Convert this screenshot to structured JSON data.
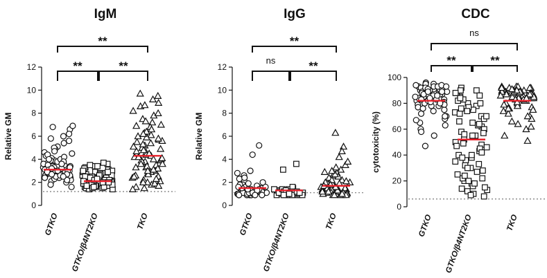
{
  "chart_data": [
    {
      "type": "scatter",
      "title": "IgM",
      "xlabel": "",
      "ylabel": "Relative GM",
      "categories": [
        "GTKO",
        "GTKO/β4NT2KO",
        "TKO"
      ],
      "markers": [
        "circle",
        "square",
        "triangle"
      ],
      "ylim": [
        0,
        12
      ],
      "yticks": [
        0,
        2,
        4,
        6,
        8,
        10,
        12
      ],
      "cutoff": 1.2,
      "medians": [
        3.1,
        2.1,
        4.3
      ],
      "median_color": "#e8202a",
      "comparisons": [
        {
          "from": 0,
          "to": 1,
          "label": "**"
        },
        {
          "from": 1,
          "to": 2,
          "label": "**"
        },
        {
          "from": 0,
          "to": 2,
          "label": "**"
        }
      ],
      "series": [
        {
          "values": [
            3.0,
            2.4,
            4.6,
            3.9,
            6.6,
            2.7,
            3.1,
            5.1,
            2.5,
            3.6,
            4.3,
            2.2,
            3.2,
            2.9,
            3.8,
            5.8,
            2.6,
            3.5,
            4.1,
            2.1,
            3.3,
            6.2,
            2.8,
            3.0,
            4.9,
            3.7,
            2.4,
            3.4,
            5.4,
            2.7,
            3.1,
            4.4,
            2.3,
            3.6,
            6.9,
            2.9,
            3.2,
            4.0,
            2.6,
            3.9,
            5.0,
            2.5,
            3.3,
            2.0,
            4.7,
            3.0,
            2.8,
            3.5,
            6.0,
            2.4,
            3.1,
            4.2,
            2.7,
            3.4,
            5.6,
            2.2,
            3.8,
            2.6,
            3.0,
            4.5,
            1.8,
            3.2,
            2.9,
            6.8,
            3.6,
            2.5,
            4.0,
            3.3,
            1.6,
            2.7
          ]
        },
        {
          "values": [
            2.3,
            1.8,
            2.6,
            2.0,
            3.4,
            1.7,
            2.2,
            2.9,
            1.6,
            2.4,
            3.1,
            1.9,
            2.1,
            2.5,
            1.5,
            2.8,
            2.0,
            3.6,
            1.8,
            2.3,
            2.7,
            1.4,
            2.2,
            3.0,
            1.9,
            2.4,
            2.0,
            3.3,
            1.7,
            2.6,
            2.1,
            1.6,
            2.9,
            2.3,
            1.8,
            3.5,
            2.2,
            2.5,
            1.5,
            2.0,
            2.8,
            1.9,
            2.4,
            3.2,
            1.7,
            2.1,
            2.6,
            1.6,
            2.3,
            3.7,
            1.8,
            2.2,
            2.0,
            2.7,
            1.4,
            2.5,
            1.9,
            2.9,
            2.1,
            3.0,
            1.7,
            2.4,
            1.8,
            2.6,
            2.2,
            1.5,
            3.4,
            2.0,
            2.3,
            1.6
          ]
        },
        {
          "values": [
            4.2,
            2.5,
            6.1,
            3.3,
            8.9,
            1.8,
            5.2,
            3.9,
            9.5,
            2.2,
            4.6,
            7.2,
            3.0,
            5.7,
            2.0,
            4.0,
            6.8,
            3.5,
            1.5,
            8.2,
            4.9,
            2.8,
            5.4,
            3.7,
            7.8,
            1.9,
            4.4,
            6.3,
            3.2,
            9.2,
            2.4,
            5.0,
            3.8,
            7.0,
            4.3,
            2.6,
            6.6,
            1.6,
            5.5,
            3.4,
            8.6,
            4.1,
            2.1,
            5.9,
            3.6,
            7.5,
            4.7,
            2.9,
            6.0,
            3.1,
            9.7,
            1.7,
            4.5,
            5.3,
            2.3,
            6.9,
            3.9,
            4.8,
            8.0,
            2.7,
            5.1,
            3.3,
            7.3,
            4.2,
            2.0,
            6.4,
            3.6,
            5.6,
            1.4,
            4.0,
            8.7,
            3.0,
            5.8,
            2.5,
            6.2
          ]
        }
      ]
    },
    {
      "type": "scatter",
      "title": "IgG",
      "xlabel": "",
      "ylabel": "Relative GM",
      "categories": [
        "GTKO",
        "GTKO/β4NT2KO",
        "TKO"
      ],
      "markers": [
        "circle",
        "square",
        "triangle"
      ],
      "ylim": [
        0,
        12
      ],
      "yticks": [
        0,
        2,
        4,
        6,
        8,
        10,
        12
      ],
      "cutoff": 1.1,
      "medians": [
        1.5,
        1.3,
        1.7
      ],
      "median_color": "#e8202a",
      "comparisons": [
        {
          "from": 0,
          "to": 1,
          "label": "ns"
        },
        {
          "from": 1,
          "to": 2,
          "label": "**"
        },
        {
          "from": 0,
          "to": 2,
          "label": "**"
        }
      ],
      "series": [
        {
          "values": [
            1.2,
            1.0,
            1.5,
            0.9,
            2.1,
            1.1,
            1.3,
            2.6,
            1.0,
            1.4,
            1.2,
            0.9,
            1.8,
            1.1,
            1.3,
            5.2,
            1.0,
            1.6,
            1.2,
            0.9,
            2.3,
            1.1,
            1.4,
            1.0,
            1.7,
            1.2,
            4.4,
            0.9,
            1.3,
            1.1,
            1.9,
            1.0,
            1.5,
            1.2,
            2.8,
            0.9,
            1.1,
            1.4,
            1.0,
            1.6,
            1.3,
            2.0,
            1.1,
            0.9,
            1.2,
            1.5,
            1.0,
            3.0,
            1.3,
            1.1,
            1.4,
            0.9,
            1.8,
            1.2,
            1.0,
            1.6,
            1.1,
            2.4,
            1.3,
            0.9
          ]
        },
        {
          "values": [
            1.1,
            0.9,
            1.3,
            1.0,
            1.2,
            0.9,
            1.4,
            1.0,
            1.1,
            3.6,
            0.9,
            1.2,
            1.0,
            1.3,
            0.9,
            1.1,
            1.5,
            1.0,
            0.9,
            1.2,
            1.1,
            3.1,
            1.0,
            1.3,
            0.9,
            1.1,
            1.2,
            1.0,
            1.4,
            0.9,
            1.1,
            1.0,
            1.6,
            1.2,
            0.9,
            1.0,
            1.3,
            1.1,
            0.9,
            1.2,
            1.0,
            1.1,
            1.4,
            0.9,
            1.0,
            1.2,
            1.1,
            1.3,
            0.9,
            1.0
          ]
        },
        {
          "values": [
            1.5,
            1.0,
            2.3,
            1.2,
            3.5,
            0.9,
            1.8,
            2.9,
            1.1,
            6.3,
            1.4,
            2.0,
            0.9,
            1.6,
            4.2,
            1.2,
            2.6,
            1.0,
            1.9,
            3.1,
            1.3,
            5.1,
            1.1,
            2.2,
            0.9,
            1.7,
            1.4,
            2.8,
            1.0,
            3.8,
            1.5,
            1.2,
            2.4,
            1.1,
            1.8,
            0.9,
            2.0,
            1.3,
            4.7,
            1.0,
            1.6,
            2.5,
            1.2,
            1.9,
            0.9,
            3.3,
            1.4,
            1.1,
            2.1,
            1.7,
            1.0,
            2.7,
            1.3,
            1.5,
            0.9,
            2.2,
            1.2,
            1.8,
            1.0,
            3.0
          ]
        }
      ]
    },
    {
      "type": "scatter",
      "title": "CDC",
      "xlabel": "",
      "ylabel": "cytotoxicity (%)",
      "categories": [
        "GTKO",
        "GTKO/β4NT2KO",
        "TKO"
      ],
      "markers": [
        "circle",
        "square",
        "triangle"
      ],
      "ylim": [
        0,
        100
      ],
      "yticks": [
        0,
        20,
        40,
        60,
        80,
        100
      ],
      "cutoff": 6,
      "medians": [
        82,
        52,
        82
      ],
      "median_color": "#e8202a",
      "comparisons": [
        {
          "from": 0,
          "to": 1,
          "label": "**"
        },
        {
          "from": 1,
          "to": 2,
          "label": "**"
        },
        {
          "from": 0,
          "to": 2,
          "label": "ns"
        }
      ],
      "series": [
        {
          "values": [
            88,
            92,
            85,
            78,
            95,
            82,
            90,
            70,
            86,
            93,
            80,
            75,
            89,
            94,
            83,
            65,
            91,
            87,
            79,
            96,
            84,
            72,
            88,
            92,
            81,
            60,
            90,
            86,
            77,
            94,
            83,
            68,
            89,
            93,
            85,
            74,
            91,
            80,
            87,
            55,
            92,
            84,
            78,
            95,
            82,
            63,
            89,
            86,
            76,
            93,
            81,
            70,
            90,
            88,
            47,
            85,
            92,
            79,
            94,
            83,
            67,
            91,
            87,
            58,
            84,
            93,
            80,
            89
          ]
        },
        {
          "values": [
            90,
            85,
            78,
            70,
            62,
            55,
            48,
            40,
            33,
            25,
            18,
            12,
            88,
            80,
            73,
            66,
            58,
            50,
            43,
            36,
            28,
            20,
            14,
            8,
            92,
            83,
            75,
            68,
            60,
            52,
            45,
            38,
            30,
            22,
            16,
            10,
            86,
            77,
            70,
            63,
            55,
            47,
            40,
            32,
            24,
            18,
            90,
            82,
            74,
            65,
            57,
            49,
            42,
            35,
            27,
            20,
            13,
            88,
            80,
            72,
            64,
            56,
            46,
            38,
            30,
            22,
            15,
            9,
            84,
            76
          ]
        },
        {
          "values": [
            86,
            90,
            80,
            88,
            92,
            76,
            84,
            89,
            70,
            87,
            91,
            82,
            78,
            93,
            85,
            66,
            88,
            90,
            74,
            86,
            92,
            80,
            60,
            89,
            84,
            91,
            77,
            87,
            93,
            72,
            85,
            89,
            82,
            55,
            90,
            86,
            79,
            92,
            68,
            88,
            84,
            91,
            75,
            87,
            62,
            90,
            83,
            89,
            78,
            93,
            86,
            70,
            88,
            81,
            92,
            85,
            64,
            89,
            76,
            90,
            87,
            83,
            51,
            91,
            84
          ]
        }
      ]
    }
  ]
}
